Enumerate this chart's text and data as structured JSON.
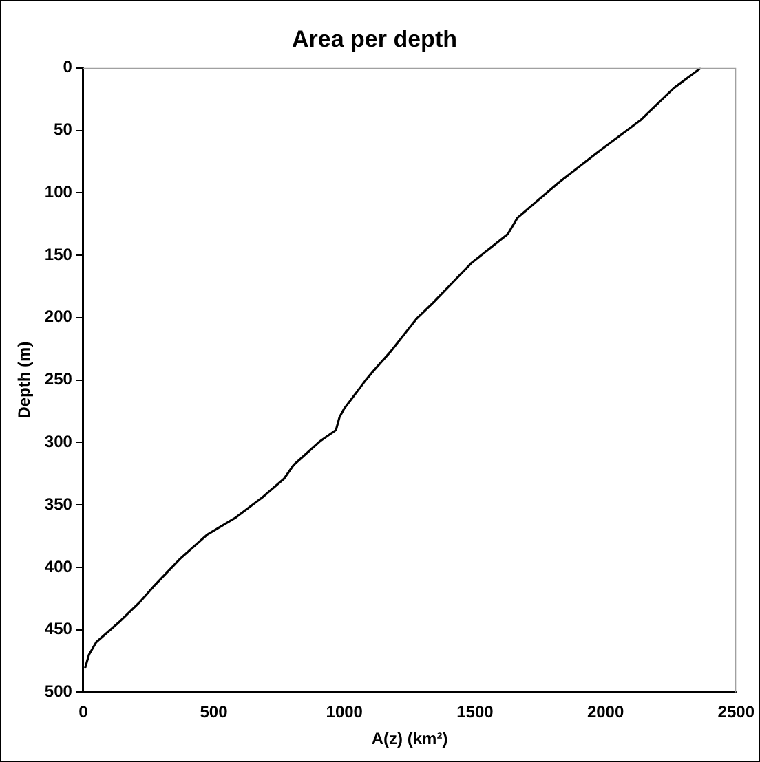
{
  "chart_data": {
    "type": "line",
    "title": "Area per depth",
    "xlabel": "A(z) (km²)",
    "ylabel": "Depth (m)",
    "x": [
      2365,
      2262,
      2133,
      1967,
      1820,
      1663,
      1626,
      1488,
      1340,
      1276,
      1174,
      1110,
      1082,
      999,
      981,
      968,
      907,
      806,
      769,
      686,
      585,
      474,
      372,
      271,
      216,
      142,
      50,
      22,
      7
    ],
    "series": [
      {
        "color": "#000000",
        "values": [
          0,
          16,
          42,
          68,
          92,
          120,
          133,
          156,
          188,
          201,
          228,
          243,
          250,
          273,
          280,
          290,
          299,
          318,
          329,
          344,
          360,
          374,
          393,
          415,
          428,
          443,
          460,
          470,
          481
        ]
      }
    ],
    "xlim": [
      0,
      2500
    ],
    "xticks": [
      0,
      500,
      1000,
      1500,
      2000,
      2500
    ],
    "ylim": [
      500,
      0
    ],
    "yticks": [
      0,
      50,
      100,
      150,
      200,
      250,
      300,
      350,
      400,
      450,
      500
    ],
    "grid": false,
    "legend": false,
    "marker": "none",
    "line_style": "solid"
  }
}
